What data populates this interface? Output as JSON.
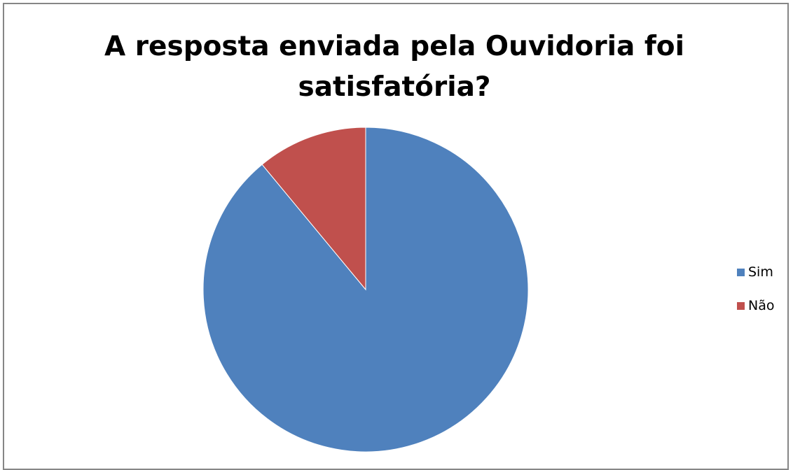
{
  "chart_data": {
    "type": "pie",
    "title": "A resposta enviada pela Ouvidoria foi\nsatisfatória?",
    "categories": [
      "Sim",
      "Não"
    ],
    "values": [
      89,
      11
    ],
    "colors": [
      "#4F81BD",
      "#C0504D"
    ],
    "legend_position": "right"
  }
}
